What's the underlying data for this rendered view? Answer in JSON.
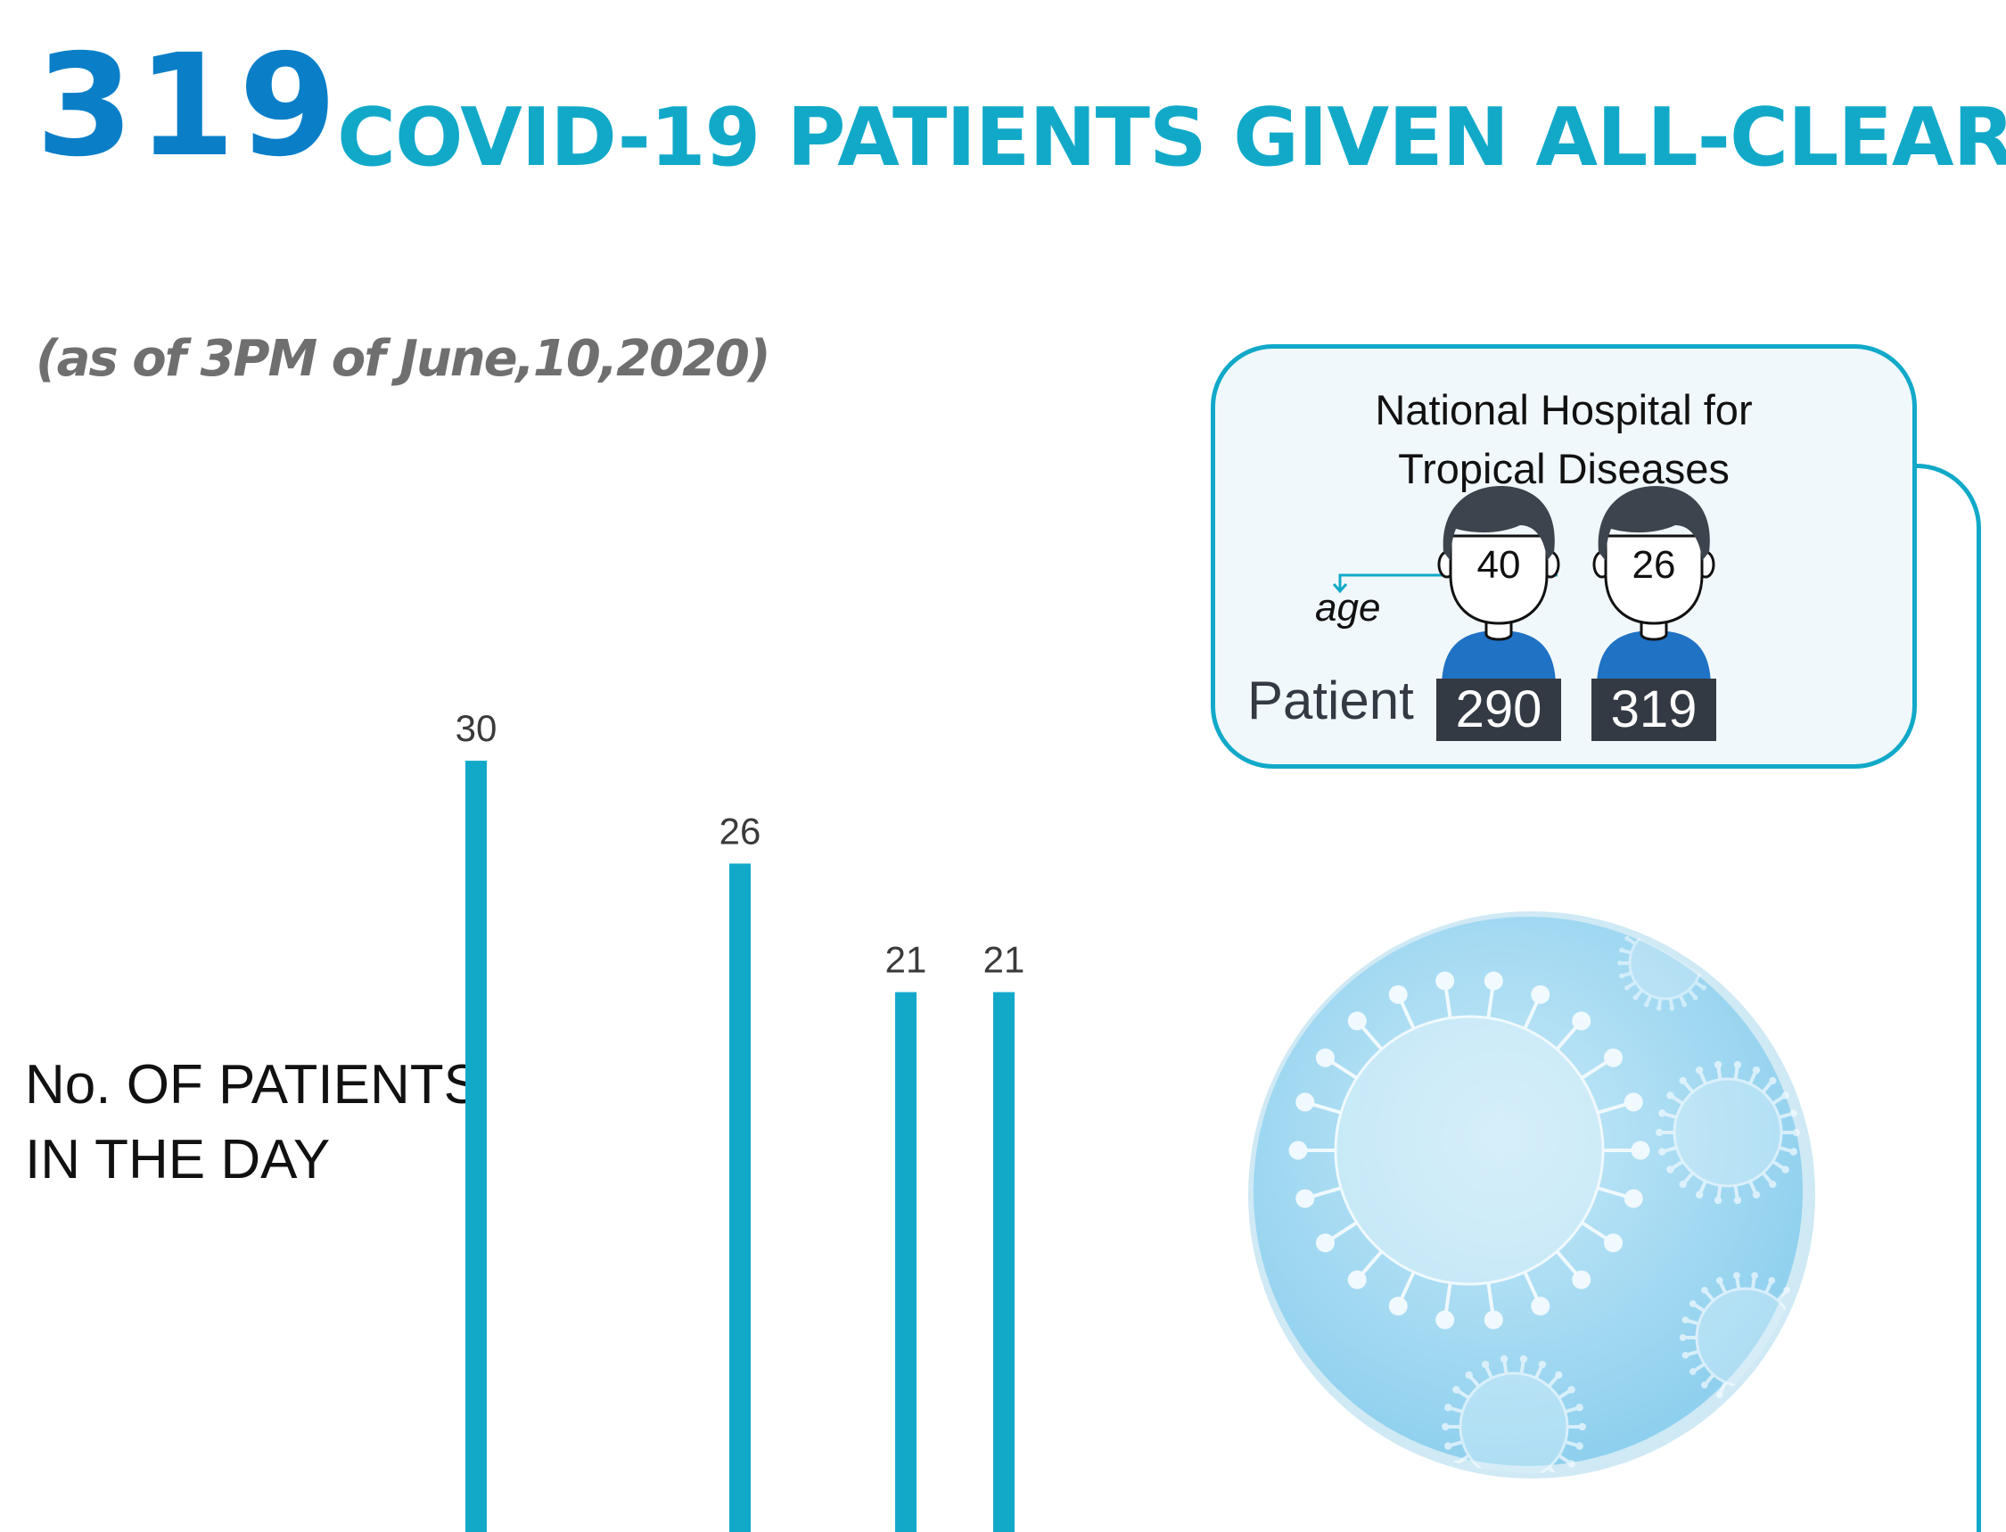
{
  "header": {
    "number": "319",
    "title": "COVID-19 PATIENTS GIVEN ALL-CLEAR",
    "timestamp": "(as of 3PM of June,10,2020)"
  },
  "chart_label_lines": [
    "No. OF PATIENTS",
    "IN THE DAY"
  ],
  "hospital": {
    "name_lines": [
      "National Hospital for",
      "Tropical Diseases"
    ],
    "age_label": "age",
    "patient_label": "Patient",
    "patients": [
      {
        "number": "290",
        "age": "40"
      },
      {
        "number": "319",
        "age": "26"
      }
    ]
  },
  "chart_data": {
    "type": "bar",
    "title": "",
    "ylabel": "No. OF PATIENTS IN THE DAY",
    "values": [
      30,
      26,
      21,
      21
    ],
    "ylim": [
      0,
      30
    ],
    "grid": false,
    "legend": "none"
  },
  "colors": {
    "accent_blue": "#0a7fc8",
    "title_teal": "#12a9c9",
    "bar": "#12a9c9",
    "patient_badge": "#333a44",
    "shirt": "#1f72c4",
    "hair": "#3c444e"
  },
  "icons": {
    "patient": "male-patient-icon",
    "virus": "coronavirus-icon"
  }
}
